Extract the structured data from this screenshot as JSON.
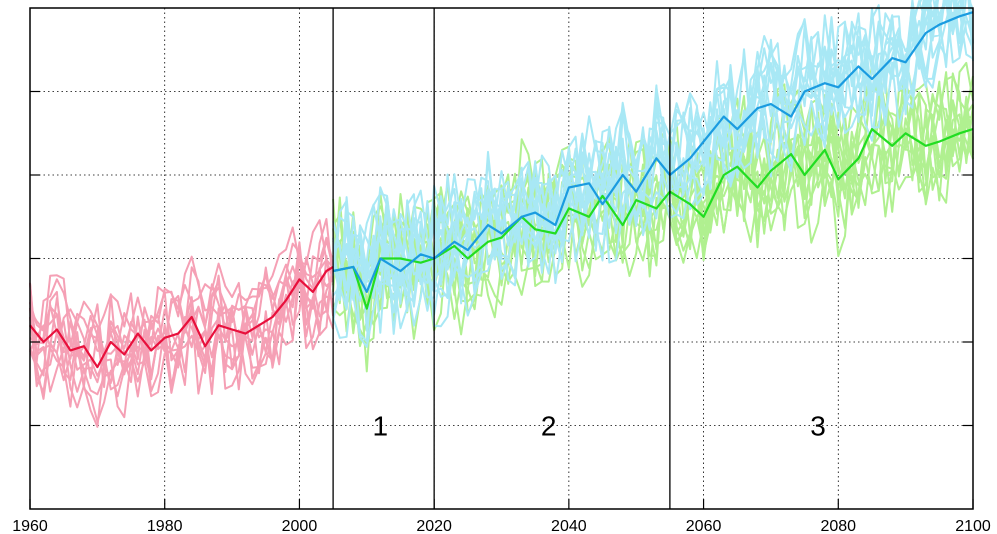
{
  "chart_data": {
    "type": "line",
    "title": "",
    "xlabel": "",
    "ylabel": "",
    "xlim": [
      1960,
      2100
    ],
    "ylim": [
      0,
      6
    ],
    "x_ticks": [
      1960,
      1980,
      2000,
      2020,
      2040,
      2060,
      2080,
      2100
    ],
    "y_ticks": [
      1,
      2,
      3,
      4,
      5
    ],
    "y_tick_labels_shown": false,
    "grid": "dotted",
    "legend": "none",
    "period_boundaries": [
      2005,
      2020,
      2055
    ],
    "period_labels": [
      {
        "text": "1",
        "x": 2012,
        "y": 1
      },
      {
        "text": "2",
        "x": 2037,
        "y": 1
      },
      {
        "text": "3",
        "x": 2077,
        "y": 1
      }
    ],
    "colors": {
      "historical_members": "#f5a0b5",
      "historical_mean": "#e8103c",
      "scenario_high_members": "#a8e8f5",
      "scenario_high_mean": "#1a9be0",
      "scenario_low_members": "#b0f090",
      "scenario_low_mean": "#22dd22",
      "boundary_lines": "#000000",
      "grid": "#000000"
    },
    "series": [
      {
        "role": "historical-ensemble-mean",
        "x": [
          1960,
          1962,
          1964,
          1966,
          1968,
          1970,
          1972,
          1974,
          1976,
          1978,
          1980,
          1982,
          1984,
          1986,
          1988,
          1990,
          1992,
          1994,
          1996,
          1998,
          2000,
          2002,
          2004,
          2005
        ],
        "values": [
          2.2,
          2.0,
          2.15,
          1.9,
          1.95,
          1.7,
          2.0,
          1.85,
          2.1,
          1.9,
          2.05,
          2.1,
          2.3,
          1.95,
          2.2,
          2.15,
          2.1,
          2.2,
          2.3,
          2.5,
          2.75,
          2.6,
          2.85,
          2.9
        ]
      },
      {
        "role": "scenario-high-ensemble-mean",
        "x": [
          2005,
          2008,
          2010,
          2012,
          2015,
          2018,
          2020,
          2023,
          2025,
          2028,
          2030,
          2033,
          2035,
          2038,
          2040,
          2043,
          2045,
          2048,
          2050,
          2053,
          2055,
          2058,
          2060,
          2063,
          2065,
          2068,
          2070,
          2073,
          2075,
          2078,
          2080,
          2083,
          2085,
          2088,
          2090,
          2093,
          2095,
          2098,
          2100
        ],
        "values": [
          2.85,
          2.9,
          2.6,
          3.0,
          2.85,
          3.05,
          3.0,
          3.2,
          3.1,
          3.4,
          3.3,
          3.5,
          3.55,
          3.4,
          3.85,
          3.9,
          3.65,
          4.0,
          3.8,
          4.2,
          4.0,
          4.2,
          4.4,
          4.7,
          4.55,
          4.8,
          4.85,
          4.7,
          5.0,
          5.1,
          5.05,
          5.3,
          5.15,
          5.4,
          5.35,
          5.7,
          5.8,
          5.9,
          5.95
        ]
      },
      {
        "role": "scenario-low-ensemble-mean",
        "x": [
          2005,
          2008,
          2010,
          2012,
          2015,
          2018,
          2020,
          2023,
          2025,
          2028,
          2030,
          2033,
          2035,
          2038,
          2040,
          2043,
          2045,
          2048,
          2050,
          2053,
          2055,
          2058,
          2060,
          2063,
          2065,
          2068,
          2070,
          2073,
          2075,
          2078,
          2080,
          2083,
          2085,
          2088,
          2090,
          2093,
          2095,
          2098,
          2100
        ],
        "values": [
          2.85,
          2.9,
          2.4,
          3.0,
          3.0,
          2.95,
          3.0,
          3.15,
          3.0,
          3.2,
          3.25,
          3.5,
          3.35,
          3.3,
          3.6,
          3.5,
          3.75,
          3.4,
          3.7,
          3.6,
          3.8,
          3.65,
          3.5,
          4.0,
          4.1,
          3.85,
          4.05,
          4.25,
          4.0,
          4.3,
          3.95,
          4.2,
          4.55,
          4.35,
          4.5,
          4.35,
          4.4,
          4.5,
          4.55
        ]
      }
    ]
  }
}
